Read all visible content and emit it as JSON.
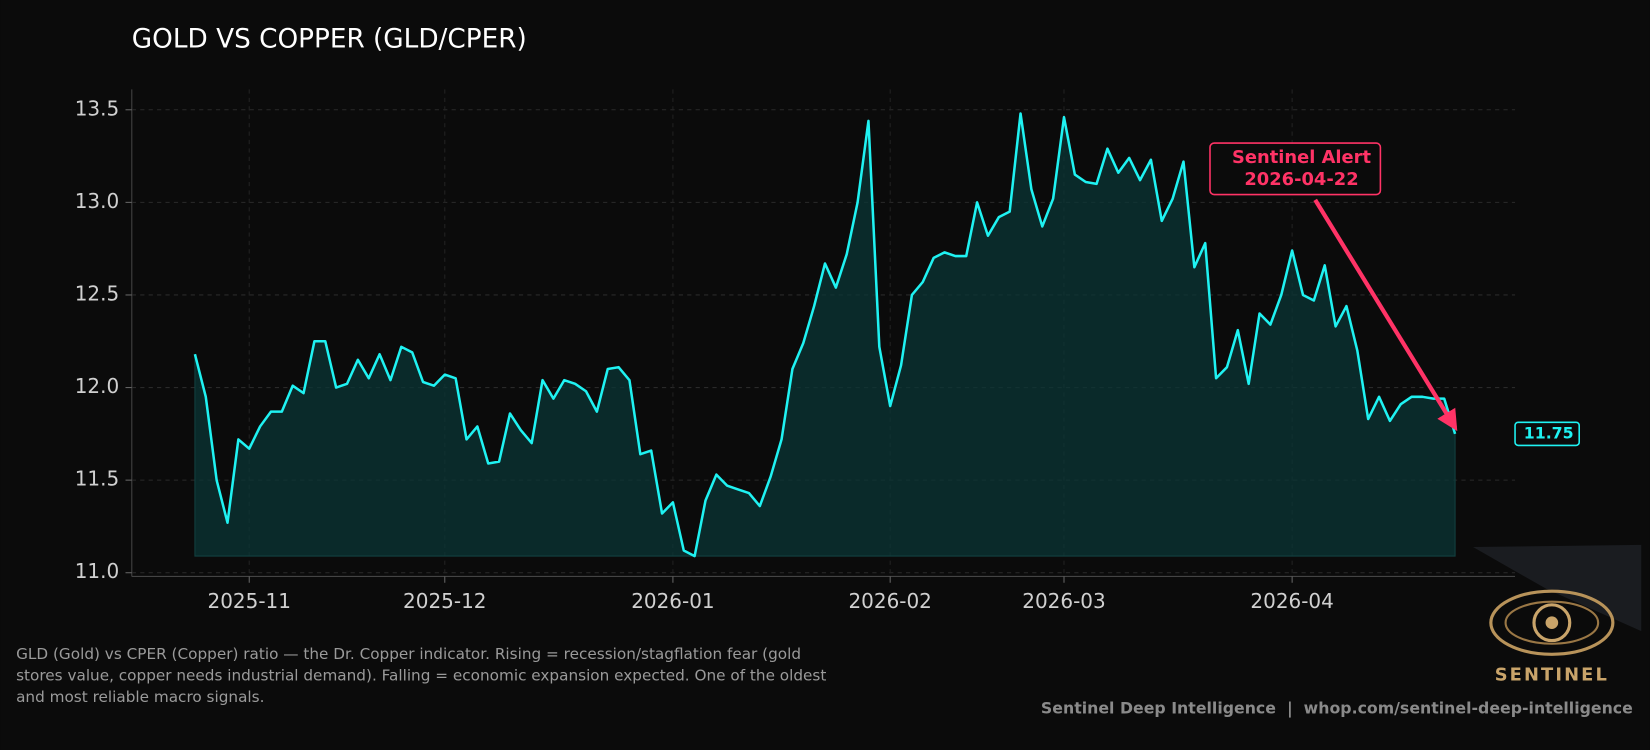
{
  "chart_data": {
    "type": "line",
    "title": "GOLD VS COPPER (GLD/CPER)",
    "categories": [
      null,
      null,
      null,
      null,
      null,
      "2025-11",
      null,
      null,
      null,
      null,
      null,
      null,
      null,
      null,
      null,
      null,
      null,
      null,
      null,
      null,
      null,
      null,
      null,
      "2025-12",
      null,
      null,
      null,
      null,
      null,
      null,
      null,
      null,
      null,
      null,
      null,
      null,
      null,
      null,
      null,
      null,
      null,
      null,
      null,
      null,
      "2026-01",
      null,
      null,
      null,
      null,
      null,
      null,
      null,
      null,
      null,
      null,
      null,
      null,
      null,
      null,
      null,
      null,
      null,
      null,
      null,
      "2026-02",
      null,
      null,
      null,
      null,
      null,
      null,
      null,
      null,
      null,
      null,
      null,
      null,
      null,
      null,
      null,
      "2026-03",
      null,
      null,
      null,
      null,
      null,
      null,
      null,
      null,
      null,
      null,
      null,
      null,
      null,
      null,
      null,
      null,
      null,
      null,
      null,
      null,
      "2026-04",
      null,
      null,
      null,
      null,
      null,
      null,
      null,
      null,
      null,
      null,
      null,
      null,
      null,
      null,
      null
    ],
    "series": [
      {
        "color": "#1ff2f2",
        "values": [
          12.18,
          11.95,
          11.5,
          11.27,
          11.72,
          11.67,
          11.79,
          11.87,
          11.87,
          12.01,
          11.97,
          12.25,
          12.25,
          12.0,
          12.02,
          12.15,
          12.05,
          12.18,
          12.04,
          12.22,
          12.19,
          12.03,
          12.01,
          12.07,
          12.05,
          11.72,
          11.79,
          11.59,
          11.6,
          11.86,
          11.77,
          11.7,
          12.04,
          11.94,
          12.04,
          12.02,
          11.98,
          11.87,
          12.1,
          12.11,
          12.04,
          11.64,
          11.66,
          11.32,
          11.38,
          11.12,
          11.09,
          11.39,
          11.53,
          11.47,
          11.45,
          11.43,
          11.36,
          11.52,
          11.72,
          12.1,
          12.24,
          12.44,
          12.67,
          12.54,
          12.72,
          13.0,
          13.44,
          12.22,
          11.9,
          12.12,
          12.5,
          12.57,
          12.7,
          12.73,
          12.71,
          12.71,
          13.0,
          12.82,
          12.92,
          12.95,
          13.48,
          13.07,
          12.87,
          13.02,
          13.46,
          13.15,
          13.11,
          13.1,
          13.29,
          13.16,
          13.24,
          13.12,
          13.23,
          12.9,
          13.02,
          13.22,
          12.65,
          12.78,
          12.05,
          12.11,
          12.31,
          12.02,
          12.4,
          12.34,
          12.5,
          12.74,
          12.5,
          12.47,
          12.66,
          12.33,
          12.44,
          12.2,
          11.83,
          11.95,
          11.82,
          11.91,
          11.95,
          11.95,
          11.94,
          11.94,
          11.75
        ]
      }
    ],
    "ylim": [
      10.98,
      13.61
    ],
    "yticks": [
      {
        "value": 11,
        "label": "11.0"
      },
      11.5,
      {
        "value": 12,
        "label": "12.0"
      },
      12.5,
      {
        "value": 13,
        "label": "13.0"
      },
      13.5
    ],
    "grid": true,
    "annotation": {
      "title": "Sentinel Alert",
      "date": "2026-04-22",
      "color": "#ff3366"
    },
    "description": [
      "GLD (Gold) vs CPER (Copper) ratio — the Dr. Copper indicator. Rising = recession/stagflation fear (gold",
      "stores value, copper needs industrial demand). Falling = economic expansion expected. One of the oldest",
      "and most reliable macro signals."
    ],
    "footer": "Sentinel Deep Intelligence  |  whop.com/sentinel-deep-intelligence",
    "logo": "SENTINEL"
  }
}
